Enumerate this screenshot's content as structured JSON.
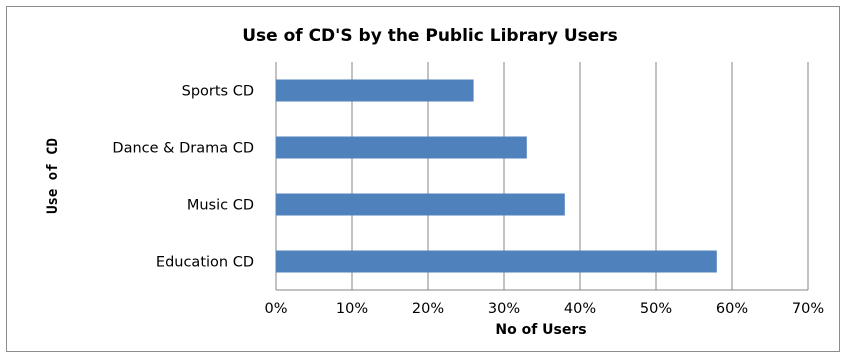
{
  "chart_data": {
    "type": "bar",
    "orientation": "horizontal",
    "title": "Use of CD'S by the Public Library Users",
    "xlabel": "No of Users",
    "ylabel": "Use of CD",
    "categories": [
      "Sports CD",
      "Dance & Drama CD",
      "Music CD",
      "Education CD"
    ],
    "values": [
      26,
      33,
      38,
      58
    ],
    "value_unit": "%",
    "xlim": [
      0,
      70
    ],
    "xticks": [
      "0%",
      "10%",
      "20%",
      "30%",
      "40%",
      "50%",
      "60%",
      "70%"
    ],
    "grid": true,
    "bar_color": "#4F81BD",
    "grid_color": "#868686"
  }
}
